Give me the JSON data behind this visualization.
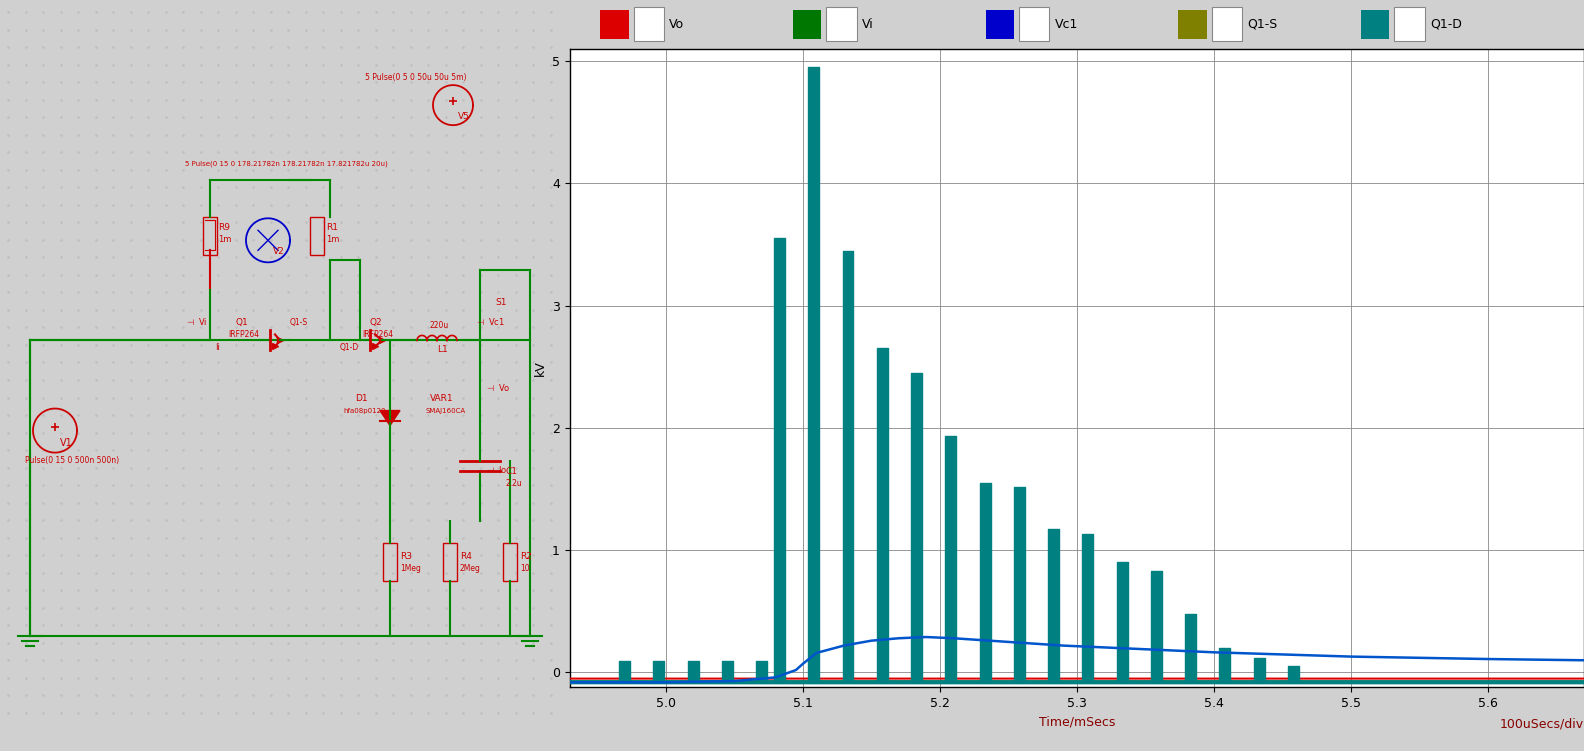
{
  "xlabel": "Time/mSecs",
  "ylabel": "kV",
  "xlabel_right": "100uSecs/div",
  "xlim": [
    4.93,
    5.67
  ],
  "ylim": [
    -0.12,
    5.1
  ],
  "xticks": [
    5.0,
    5.1,
    5.2,
    5.3,
    5.4,
    5.5,
    5.6
  ],
  "yticks": [
    0,
    1,
    2,
    3,
    4,
    5
  ],
  "legend_items": [
    {
      "label": "Vo",
      "facecolor": "#dd0000",
      "edgecolor": "#dd0000"
    },
    {
      "label": "Vi",
      "facecolor": "#007700",
      "edgecolor": "#007700"
    },
    {
      "label": "Vc1",
      "facecolor": "#0000cc",
      "edgecolor": "#0000cc"
    },
    {
      "label": "Q1-S",
      "facecolor": "#808000",
      "edgecolor": "#808000"
    },
    {
      "label": "Q1-D",
      "facecolor": "#008080",
      "edgecolor": "#008080"
    }
  ],
  "spike_times": [
    4.97,
    4.995,
    5.02,
    5.045,
    5.07,
    5.083,
    5.108,
    5.133,
    5.158,
    5.183,
    5.208,
    5.233,
    5.258,
    5.283,
    5.308,
    5.333,
    5.358,
    5.383,
    5.408,
    5.433,
    5.458
  ],
  "spike_heights": [
    0.09,
    0.09,
    0.09,
    0.09,
    0.09,
    3.55,
    4.95,
    3.45,
    2.65,
    2.45,
    1.93,
    1.55,
    1.52,
    1.17,
    1.13,
    0.9,
    0.83,
    0.48,
    0.2,
    0.12,
    0.05
  ],
  "spike_bottoms": [
    -0.08,
    -0.08,
    -0.08,
    -0.08,
    -0.08,
    -0.08,
    -0.08,
    -0.08,
    -0.08,
    -0.08,
    -0.08,
    -0.08,
    -0.08,
    -0.08,
    -0.08,
    -0.08,
    -0.08,
    -0.08,
    -0.08,
    -0.08,
    -0.08
  ],
  "spike_color": "#008080",
  "teal_baseline_y": -0.08,
  "vo_y": -0.05,
  "red_color": "#dd0000",
  "green_color": "#007700",
  "blue_color": "#0055cc",
  "teal_color": "#008080",
  "olive_color": "#808000",
  "vc1_x": [
    4.93,
    5.0,
    5.05,
    5.08,
    5.095,
    5.1,
    5.11,
    5.13,
    5.15,
    5.17,
    5.19,
    5.21,
    5.23,
    5.25,
    5.27,
    5.29,
    5.31,
    5.35,
    5.4,
    5.5,
    5.6,
    5.67
  ],
  "vc1_y": [
    -0.08,
    -0.08,
    -0.07,
    -0.04,
    0.02,
    0.07,
    0.16,
    0.22,
    0.26,
    0.28,
    0.29,
    0.28,
    0.265,
    0.25,
    0.235,
    0.22,
    0.21,
    0.19,
    0.165,
    0.13,
    0.11,
    0.1
  ],
  "left_panel_bg": "#f4f4f4",
  "dot_color": "#c0c0c0",
  "schematic_line_color": "#008800",
  "schematic_red": "#cc0000",
  "schematic_blue": "#0000cc",
  "fig_bg": "#d0d0d0",
  "plot_area_bg": "#ffffff"
}
